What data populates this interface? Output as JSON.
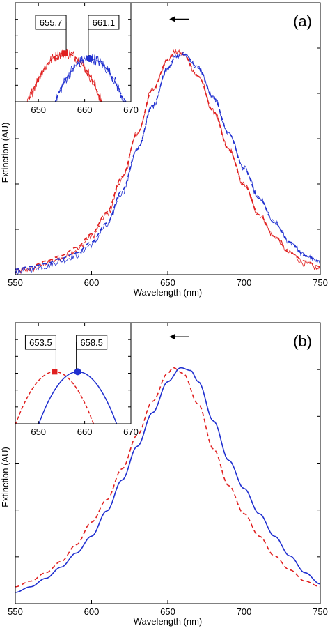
{
  "chart_data": [
    {
      "type": "line",
      "panel_label": "(a)",
      "xlabel": "Wavelength (nm)",
      "ylabel": "Extinction (AU)",
      "xlim": [
        550,
        750
      ],
      "ylim": [
        0,
        1
      ],
      "xticks": [
        550,
        600,
        650,
        700,
        750
      ],
      "x_tick_labels": [
        "550",
        "600",
        "650",
        "700",
        "750"
      ],
      "grid": false,
      "arrow": {
        "x_from": 664,
        "x_to": 651,
        "y": 0.94,
        "direction": "left"
      },
      "series": [
        {
          "color": "#e02020",
          "style": "noisy",
          "peak_x": 655.7,
          "peak_y": 0.82,
          "x": [
            550,
            560,
            570,
            580,
            590,
            600,
            610,
            620,
            630,
            640,
            650,
            655,
            660,
            670,
            680,
            690,
            700,
            710,
            720,
            730,
            740,
            750
          ],
          "y": [
            0.01,
            0.02,
            0.04,
            0.06,
            0.09,
            0.14,
            0.22,
            0.35,
            0.52,
            0.68,
            0.79,
            0.82,
            0.81,
            0.73,
            0.6,
            0.46,
            0.33,
            0.22,
            0.14,
            0.08,
            0.04,
            0.02
          ]
        },
        {
          "color": "#e02020",
          "style": "dashed",
          "peak_x": 655.7,
          "peak_y": 0.82,
          "x": [
            550,
            560,
            570,
            580,
            590,
            600,
            610,
            620,
            630,
            640,
            650,
            655,
            660,
            670,
            680,
            690,
            700,
            710,
            720,
            730,
            740,
            750
          ],
          "y": [
            0.02,
            0.03,
            0.05,
            0.07,
            0.1,
            0.15,
            0.23,
            0.36,
            0.52,
            0.68,
            0.79,
            0.82,
            0.81,
            0.73,
            0.6,
            0.46,
            0.33,
            0.22,
            0.14,
            0.08,
            0.05,
            0.03
          ]
        },
        {
          "color": "#2030d0",
          "style": "noisy",
          "peak_x": 661.1,
          "peak_y": 0.81,
          "x": [
            550,
            560,
            570,
            580,
            590,
            600,
            610,
            620,
            630,
            640,
            650,
            655,
            661,
            670,
            680,
            690,
            700,
            710,
            720,
            730,
            740,
            750
          ],
          "y": [
            0.01,
            0.02,
            0.03,
            0.05,
            0.07,
            0.11,
            0.18,
            0.3,
            0.46,
            0.62,
            0.76,
            0.8,
            0.81,
            0.76,
            0.65,
            0.52,
            0.39,
            0.28,
            0.19,
            0.12,
            0.07,
            0.04
          ]
        },
        {
          "color": "#2030d0",
          "style": "dashed",
          "peak_x": 661.1,
          "peak_y": 0.81,
          "x": [
            550,
            560,
            570,
            580,
            590,
            600,
            610,
            620,
            630,
            640,
            650,
            655,
            661,
            670,
            680,
            690,
            700,
            710,
            720,
            730,
            740,
            750
          ],
          "y": [
            0.02,
            0.03,
            0.04,
            0.06,
            0.08,
            0.12,
            0.19,
            0.31,
            0.46,
            0.62,
            0.76,
            0.8,
            0.81,
            0.76,
            0.65,
            0.52,
            0.39,
            0.28,
            0.19,
            0.12,
            0.07,
            0.05
          ]
        }
      ],
      "inset": {
        "xlim": [
          645,
          670
        ],
        "ylim": [
          0.73,
          0.85
        ],
        "xticks": [
          650,
          660,
          670
        ],
        "x_tick_labels": [
          "650",
          "660",
          "670"
        ],
        "markers": [
          {
            "x": 655.7,
            "y": 0.82,
            "label": "655.7",
            "color": "#e02020",
            "shape": "square"
          },
          {
            "x": 661.1,
            "y": 0.81,
            "label": "661.1",
            "color": "#2030d0",
            "shape": "circle"
          }
        ]
      }
    },
    {
      "type": "line",
      "panel_label": "(b)",
      "xlabel": "Wavelength (nm)",
      "ylabel": "Extinction (AU)",
      "xlim": [
        550,
        750
      ],
      "ylim": [
        0,
        1
      ],
      "xticks": [
        550,
        600,
        650,
        700,
        750
      ],
      "x_tick_labels": [
        "550",
        "600",
        "650",
        "700",
        "750"
      ],
      "grid": false,
      "arrow": {
        "x_from": 664,
        "x_to": 651,
        "y": 0.95,
        "direction": "left"
      },
      "series": [
        {
          "color": "#e02020",
          "style": "dashed",
          "peak_x": 653.5,
          "peak_y": 0.84,
          "x": [
            550,
            560,
            570,
            580,
            590,
            600,
            610,
            620,
            630,
            640,
            650,
            653.5,
            660,
            670,
            680,
            690,
            700,
            710,
            720,
            730,
            740,
            750
          ],
          "y": [
            0.06,
            0.08,
            0.11,
            0.15,
            0.21,
            0.29,
            0.37,
            0.48,
            0.6,
            0.72,
            0.82,
            0.84,
            0.82,
            0.71,
            0.55,
            0.42,
            0.32,
            0.24,
            0.17,
            0.12,
            0.08,
            0.06
          ]
        },
        {
          "color": "#2030d0",
          "style": "solid",
          "peak_x": 658.5,
          "peak_y": 0.84,
          "x": [
            550,
            560,
            570,
            580,
            590,
            600,
            610,
            620,
            630,
            640,
            650,
            658.5,
            665,
            670,
            680,
            690,
            700,
            710,
            720,
            730,
            740,
            750
          ],
          "y": [
            0.04,
            0.06,
            0.09,
            0.13,
            0.18,
            0.24,
            0.33,
            0.44,
            0.56,
            0.68,
            0.79,
            0.84,
            0.83,
            0.79,
            0.65,
            0.51,
            0.41,
            0.32,
            0.24,
            0.17,
            0.11,
            0.07
          ]
        }
      ],
      "inset": {
        "xlim": [
          645,
          670
        ],
        "ylim": [
          0.7,
          0.88
        ],
        "xticks": [
          650,
          660,
          670
        ],
        "x_tick_labels": [
          "650",
          "660",
          "670"
        ],
        "markers": [
          {
            "x": 653.5,
            "y": 0.84,
            "label": "653.5",
            "color": "#e02020",
            "shape": "square"
          },
          {
            "x": 658.5,
            "y": 0.84,
            "label": "658.5",
            "color": "#2030d0",
            "shape": "circle"
          }
        ]
      }
    }
  ]
}
